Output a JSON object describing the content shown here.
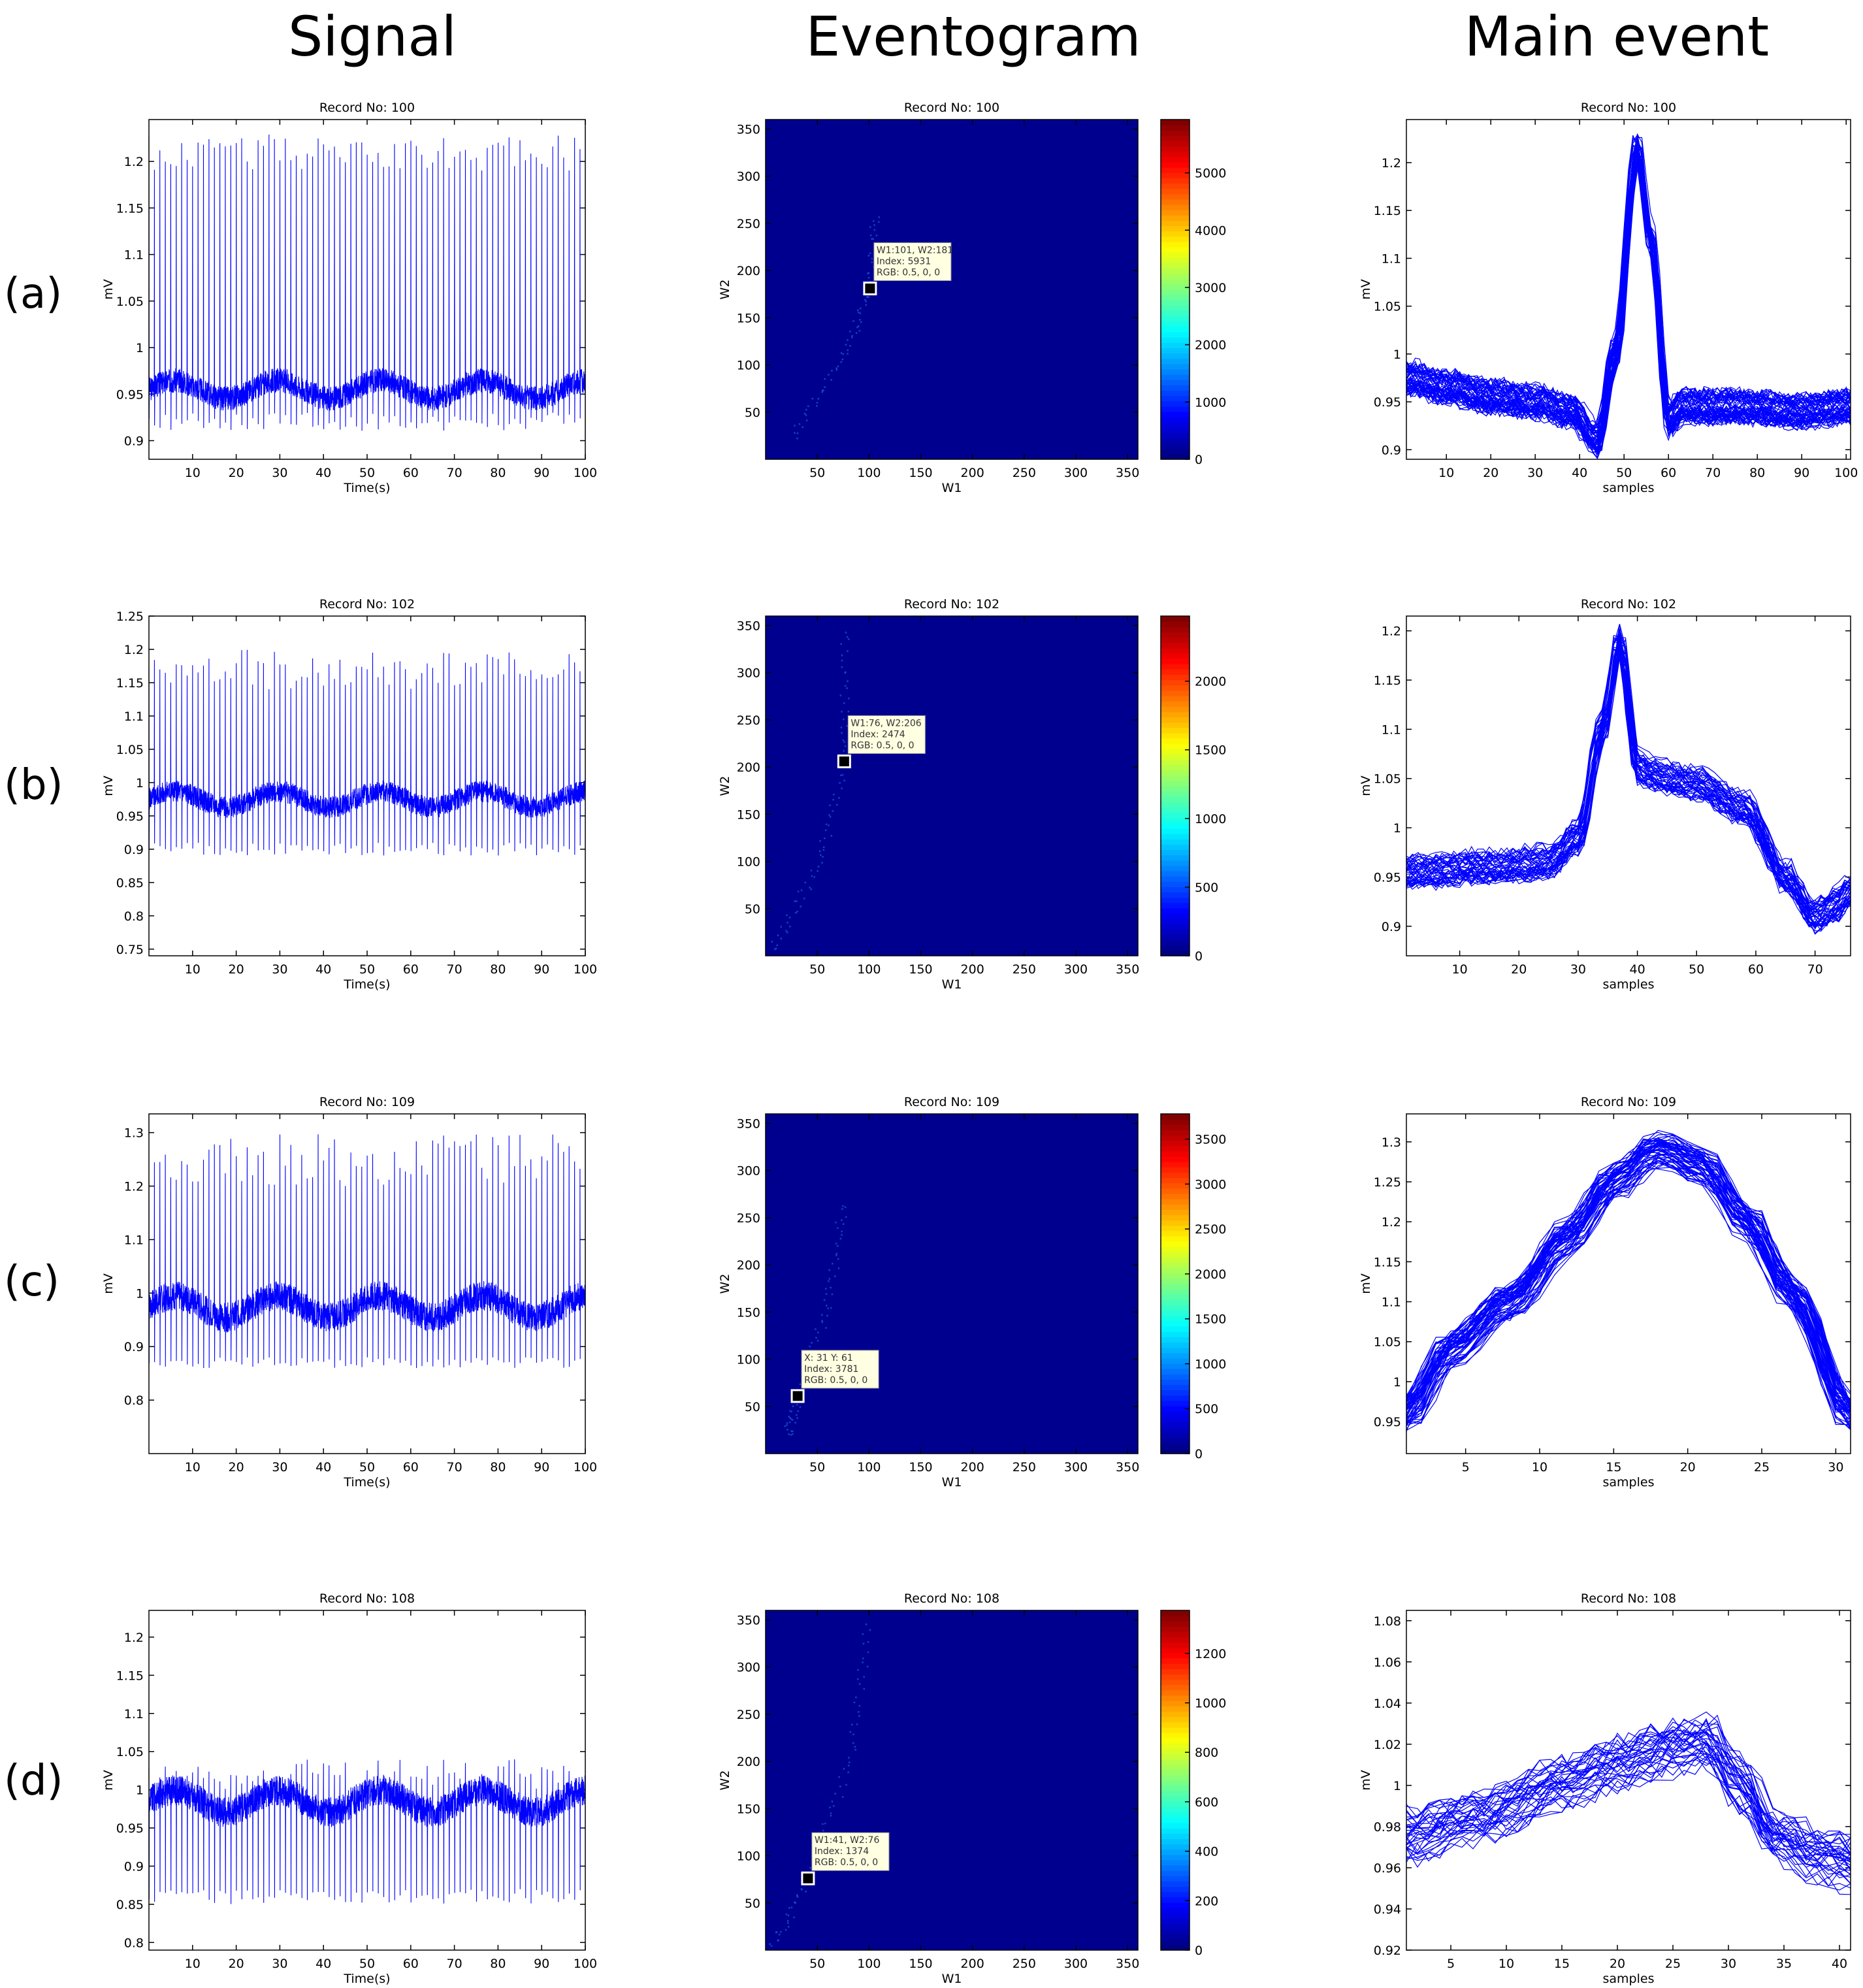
{
  "column_headers": [
    "Signal",
    "Eventogram",
    "Main event"
  ],
  "row_labels": [
    "(a)",
    "(b)",
    "(c)",
    "(d)"
  ],
  "colors": {
    "trace": "#0000ff",
    "heatmap_background": "#00008f",
    "tooltip_bg": "#ffffe1"
  },
  "chart_data": [
    {
      "type": "line",
      "panel": "signal",
      "row": 0,
      "title": "Record No: 100",
      "xlabel": "Time(s)",
      "ylabel": "mV",
      "xlim": [
        0,
        100
      ],
      "ylim": [
        0.88,
        1.245
      ],
      "xticks": [
        10,
        20,
        30,
        40,
        50,
        60,
        70,
        80,
        90,
        100
      ],
      "yticks": [
        0.9,
        0.95,
        1,
        1.05,
        1.1,
        1.15,
        1.2
      ],
      "ytick_labels": [
        "0.9",
        "0.95",
        "1",
        "1.05",
        "1.1",
        "1.15",
        "1.2"
      ],
      "baseline": 0.955,
      "noise": 0.012,
      "peak": 1.21,
      "peak_jitter": 0.02,
      "trough": 0.92,
      "beats": 80,
      "seed": 3
    },
    {
      "type": "heatmap",
      "panel": "eventogram",
      "row": 0,
      "title": "Record No: 100",
      "xlabel": "W1",
      "ylabel": "W2",
      "xlim": [
        0,
        360
      ],
      "ylim": [
        0,
        360
      ],
      "xticks": [
        50,
        100,
        150,
        200,
        250,
        300,
        350
      ],
      "yticks": [
        50,
        100,
        150,
        200,
        250,
        300,
        350
      ],
      "colorbar_max": 5931,
      "colorbar_ticks": [
        0,
        1000,
        2000,
        3000,
        4000,
        5000
      ],
      "cursor": {
        "x": 101,
        "y": 181
      },
      "datatip": [
        "W1:101, W2:181",
        "Index: 5931",
        "RGB: 0.5, 0, 0"
      ],
      "ridge": [
        [
          25,
          25
        ],
        [
          75,
          110
        ],
        [
          101,
          181
        ],
        [
          105,
          260
        ]
      ]
    },
    {
      "type": "line",
      "panel": "main_event",
      "row": 0,
      "title": "Record No: 100",
      "xlabel": "samples",
      "ylabel": "mV",
      "xlim": [
        1,
        101
      ],
      "ylim": [
        0.89,
        1.245
      ],
      "xticks": [
        10,
        20,
        30,
        40,
        50,
        60,
        70,
        80,
        90,
        100
      ],
      "yticks": [
        0.9,
        0.95,
        1,
        1.05,
        1.1,
        1.15,
        1.2
      ],
      "ytick_labels": [
        "0.9",
        "0.95",
        "1",
        "1.05",
        "1.1",
        "1.15",
        "1.2"
      ],
      "template": [
        [
          1,
          0.975
        ],
        [
          10,
          0.965
        ],
        [
          20,
          0.955
        ],
        [
          30,
          0.95
        ],
        [
          38,
          0.94
        ],
        [
          44,
          0.91
        ],
        [
          48,
          1.0
        ],
        [
          53,
          1.215
        ],
        [
          56,
          1.12
        ],
        [
          60,
          0.93
        ],
        [
          63,
          0.945
        ],
        [
          75,
          0.945
        ],
        [
          90,
          0.94
        ],
        [
          101,
          0.945
        ]
      ],
      "series_count": 60,
      "spread": 0.015,
      "seed": 11
    },
    {
      "type": "line",
      "panel": "signal",
      "row": 1,
      "title": "Record No: 102",
      "xlabel": "Time(s)",
      "ylabel": "mV",
      "xlim": [
        0,
        100
      ],
      "ylim": [
        0.74,
        1.25
      ],
      "xticks": [
        10,
        20,
        30,
        40,
        50,
        60,
        70,
        80,
        90,
        100
      ],
      "yticks": [
        0.75,
        0.8,
        0.85,
        0.9,
        0.95,
        1,
        1.05,
        1.1,
        1.15,
        1.2,
        1.25
      ],
      "ytick_labels": [
        "0.75",
        "0.8",
        "0.85",
        "0.9",
        "0.95",
        "1",
        "1.05",
        "1.1",
        "1.15",
        "1.2",
        "1.25"
      ],
      "baseline": 0.975,
      "noise": 0.015,
      "peak": 1.17,
      "peak_jitter": 0.03,
      "trough": 0.9,
      "beats": 80,
      "seed": 5
    },
    {
      "type": "heatmap",
      "panel": "eventogram",
      "row": 1,
      "title": "Record No: 102",
      "xlabel": "W1",
      "ylabel": "W2",
      "xlim": [
        0,
        360
      ],
      "ylim": [
        0,
        360
      ],
      "xticks": [
        50,
        100,
        150,
        200,
        250,
        300,
        350
      ],
      "yticks": [
        50,
        100,
        150,
        200,
        250,
        300,
        350
      ],
      "colorbar_max": 2474,
      "colorbar_ticks": [
        0,
        500,
        1000,
        1500,
        2000
      ],
      "cursor": {
        "x": 76,
        "y": 206
      },
      "datatip": [
        "W1:76, W2:206",
        "Index: 2474",
        "RGB: 0.5, 0, 0"
      ],
      "ridge": [
        [
          5,
          5
        ],
        [
          50,
          95
        ],
        [
          76,
          206
        ],
        [
          75,
          350
        ]
      ]
    },
    {
      "type": "line",
      "panel": "main_event",
      "row": 1,
      "title": "Record No: 102",
      "xlabel": "samples",
      "ylabel": "mV",
      "xlim": [
        1,
        76
      ],
      "ylim": [
        0.87,
        1.215
      ],
      "xticks": [
        10,
        20,
        30,
        40,
        50,
        60,
        70
      ],
      "yticks": [
        0.9,
        0.95,
        1,
        1.05,
        1.1,
        1.15,
        1.2
      ],
      "ytick_labels": [
        "0.9",
        "0.95",
        "1",
        "1.05",
        "1.1",
        "1.15",
        "1.2"
      ],
      "template": [
        [
          1,
          0.955
        ],
        [
          15,
          0.96
        ],
        [
          25,
          0.965
        ],
        [
          30,
          0.99
        ],
        [
          34,
          1.1
        ],
        [
          37,
          1.19
        ],
        [
          40,
          1.06
        ],
        [
          45,
          1.05
        ],
        [
          50,
          1.045
        ],
        [
          58,
          1.02
        ],
        [
          65,
          0.95
        ],
        [
          70,
          0.91
        ],
        [
          73,
          0.92
        ],
        [
          76,
          0.935
        ]
      ],
      "series_count": 45,
      "spread": 0.015,
      "seed": 17
    },
    {
      "type": "line",
      "panel": "signal",
      "row": 2,
      "title": "Record No: 109",
      "xlabel": "Time(s)",
      "ylabel": "mV",
      "xlim": [
        0,
        100
      ],
      "ylim": [
        0.7,
        1.335
      ],
      "xticks": [
        10,
        20,
        30,
        40,
        50,
        60,
        70,
        80,
        90,
        100
      ],
      "yticks": [
        0.8,
        0.9,
        1,
        1.1,
        1.2,
        1.3
      ],
      "ytick_labels": [
        "0.8",
        "0.9",
        "1",
        "1.1",
        "1.2",
        "1.3"
      ],
      "baseline": 0.975,
      "noise": 0.025,
      "peak": 1.25,
      "peak_jitter": 0.05,
      "trough": 0.87,
      "beats": 80,
      "seed": 7
    },
    {
      "type": "heatmap",
      "panel": "eventogram",
      "row": 2,
      "title": "Record No: 109",
      "xlabel": "W1",
      "ylabel": "W2",
      "xlim": [
        0,
        360
      ],
      "ylim": [
        0,
        360
      ],
      "xticks": [
        50,
        100,
        150,
        200,
        250,
        300,
        350
      ],
      "yticks": [
        50,
        100,
        150,
        200,
        250,
        300,
        350
      ],
      "colorbar_max": 3781,
      "colorbar_ticks": [
        0,
        500,
        1000,
        1500,
        2000,
        2500,
        3000,
        3500
      ],
      "cursor": {
        "x": 31,
        "y": 61
      },
      "datatip": [
        "X: 31 Y: 61",
        "Index: 3781",
        "RGB: 0.5, 0, 0"
      ],
      "ridge": [
        [
          20,
          20
        ],
        [
          31,
          61
        ],
        [
          60,
          160
        ],
        [
          75,
          270
        ]
      ]
    },
    {
      "type": "line",
      "panel": "main_event",
      "row": 2,
      "title": "Record No: 109",
      "xlabel": "samples",
      "ylabel": "mV",
      "xlim": [
        1,
        31
      ],
      "ylim": [
        0.91,
        1.335
      ],
      "xticks": [
        5,
        10,
        15,
        20,
        25,
        30
      ],
      "yticks": [
        0.95,
        1,
        1.05,
        1.1,
        1.15,
        1.2,
        1.25,
        1.3
      ],
      "ytick_labels": [
        "0.95",
        "1",
        "1.05",
        "1.1",
        "1.15",
        "1.2",
        "1.25",
        "1.3"
      ],
      "template": [
        [
          1,
          0.96
        ],
        [
          4,
          1.04
        ],
        [
          8,
          1.1
        ],
        [
          12,
          1.18
        ],
        [
          15,
          1.25
        ],
        [
          18,
          1.29
        ],
        [
          21,
          1.27
        ],
        [
          24,
          1.2
        ],
        [
          27,
          1.11
        ],
        [
          31,
          0.96
        ]
      ],
      "series_count": 60,
      "spread": 0.018,
      "seed": 23
    },
    {
      "type": "line",
      "panel": "signal",
      "row": 3,
      "title": "Record No: 108",
      "xlabel": "Time(s)",
      "ylabel": "mV",
      "xlim": [
        0,
        100
      ],
      "ylim": [
        0.79,
        1.235
      ],
      "xticks": [
        10,
        20,
        30,
        40,
        50,
        60,
        70,
        80,
        90,
        100
      ],
      "yticks": [
        0.8,
        0.85,
        0.9,
        0.95,
        1,
        1.05,
        1.1,
        1.15,
        1.2
      ],
      "ytick_labels": [
        "0.8",
        "0.85",
        "0.9",
        "0.95",
        "1",
        "1.05",
        "1.1",
        "1.15",
        "1.2"
      ],
      "baseline": 0.985,
      "noise": 0.018,
      "peak": 1.02,
      "peak_jitter": 0.02,
      "trough": 0.86,
      "beats": 80,
      "seed": 9
    },
    {
      "type": "heatmap",
      "panel": "eventogram",
      "row": 3,
      "title": "Record No: 108",
      "xlabel": "W1",
      "ylabel": "W2",
      "xlim": [
        0,
        360
      ],
      "ylim": [
        0,
        360
      ],
      "xticks": [
        50,
        100,
        150,
        200,
        250,
        300,
        350
      ],
      "yticks": [
        50,
        100,
        150,
        200,
        250,
        300,
        350
      ],
      "colorbar_max": 1374,
      "colorbar_ticks": [
        0,
        200,
        400,
        600,
        800,
        1000,
        1200
      ],
      "cursor": {
        "x": 41,
        "y": 76
      },
      "datatip": [
        "W1:41, W2:76",
        "Index: 1374",
        "RGB: 0.5, 0, 0"
      ],
      "ridge": [
        [
          5,
          5
        ],
        [
          41,
          76
        ],
        [
          80,
          200
        ],
        [
          100,
          350
        ]
      ]
    },
    {
      "type": "line",
      "panel": "main_event",
      "row": 3,
      "title": "Record No: 108",
      "xlabel": "samples",
      "ylabel": "mV",
      "xlim": [
        1,
        41
      ],
      "ylim": [
        0.92,
        1.085
      ],
      "xticks": [
        5,
        10,
        15,
        20,
        25,
        30,
        35,
        40
      ],
      "yticks": [
        0.92,
        0.94,
        0.96,
        0.98,
        1,
        1.02,
        1.04,
        1.06,
        1.08
      ],
      "ytick_labels": [
        "0.92",
        "0.94",
        "0.96",
        "0.98",
        "1",
        "1.02",
        "1.04",
        "1.06",
        "1.08"
      ],
      "template": [
        [
          1,
          0.975
        ],
        [
          8,
          0.985
        ],
        [
          15,
          1.0
        ],
        [
          20,
          1.01
        ],
        [
          25,
          1.018
        ],
        [
          28,
          1.02
        ],
        [
          31,
          1.0
        ],
        [
          34,
          0.975
        ],
        [
          38,
          0.965
        ],
        [
          41,
          0.962
        ]
      ],
      "series_count": 35,
      "spread": 0.012,
      "seed": 31
    }
  ]
}
